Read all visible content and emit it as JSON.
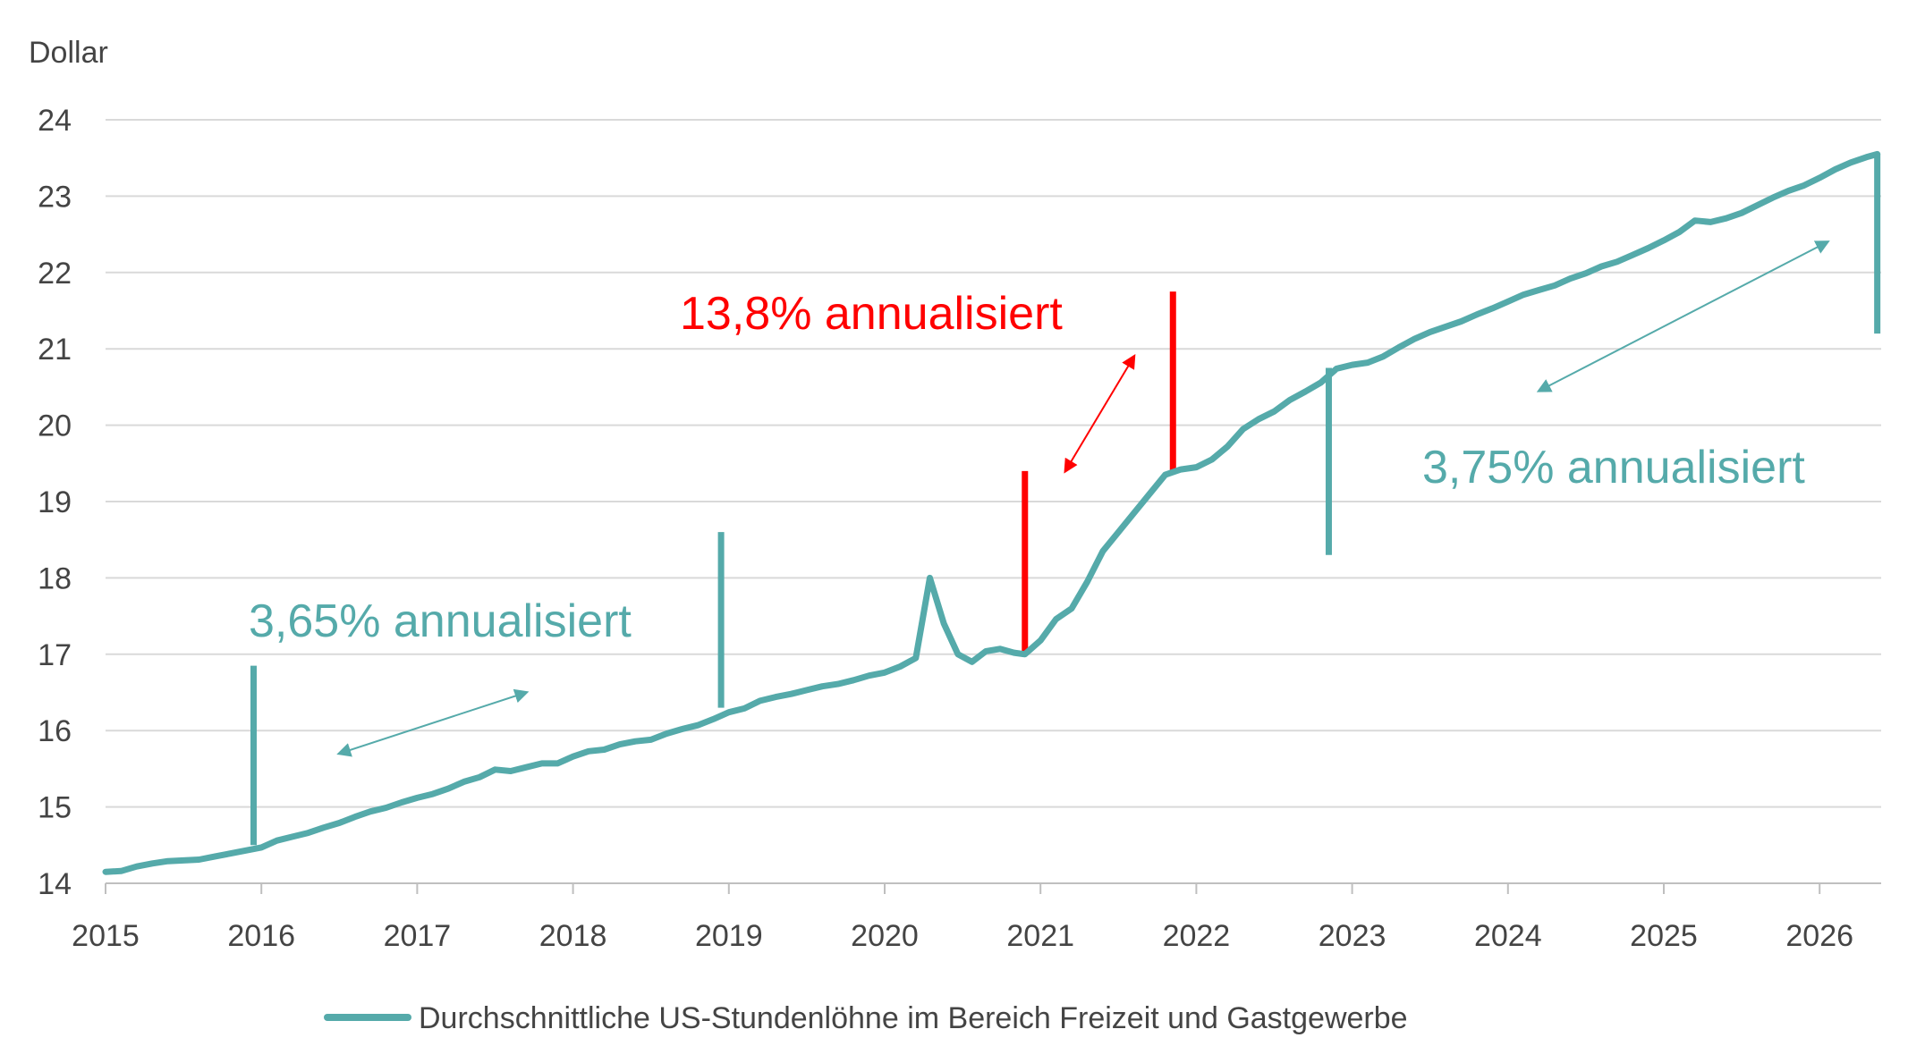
{
  "chart_data": {
    "type": "line",
    "ylabel": "Dollar",
    "ylim": [
      14,
      24
    ],
    "yticks": [
      14,
      15,
      16,
      17,
      18,
      19,
      20,
      21,
      22,
      23,
      24
    ],
    "xlim": [
      2015,
      2026.4
    ],
    "xticks": [
      "2015",
      "2016",
      "2017",
      "2018",
      "2019",
      "2020",
      "2021",
      "2022",
      "2023",
      "2024",
      "2025",
      "2026"
    ],
    "grid": true,
    "legend_position": "bottom",
    "colors": {
      "series": "#55aaaa",
      "highlight": "#ff0000",
      "grid": "#d9d9d9",
      "axis": "#bfbfbf",
      "text": "#444444"
    },
    "series": [
      {
        "name": "Durchschnittliche US-Stundenlöhne im Bereich Freizeit und Gastgewerbe",
        "x": [
          2015.0,
          2015.1,
          2015.2,
          2015.3,
          2015.4,
          2015.5,
          2015.6,
          2015.7,
          2015.8,
          2015.9,
          2016.0,
          2016.1,
          2016.2,
          2016.3,
          2016.4,
          2016.5,
          2016.6,
          2016.7,
          2016.8,
          2016.9,
          2017.0,
          2017.1,
          2017.2,
          2017.3,
          2017.4,
          2017.5,
          2017.6,
          2017.7,
          2017.8,
          2017.9,
          2018.0,
          2018.1,
          2018.2,
          2018.3,
          2018.4,
          2018.5,
          2018.6,
          2018.7,
          2018.8,
          2018.9,
          2019.0,
          2019.1,
          2019.2,
          2019.3,
          2019.4,
          2019.5,
          2019.6,
          2019.7,
          2019.8,
          2019.9,
          2020.0,
          2020.1,
          2020.2,
          2020.29,
          2020.38,
          2020.47,
          2020.56,
          2020.65,
          2020.74,
          2020.83,
          2020.9,
          2021.0,
          2021.1,
          2021.2,
          2021.3,
          2021.4,
          2021.5,
          2021.6,
          2021.7,
          2021.8,
          2021.9,
          2022.0,
          2022.1,
          2022.2,
          2022.3,
          2022.4,
          2022.5,
          2022.6,
          2022.7,
          2022.8,
          2022.9,
          2023.0,
          2023.1,
          2023.2,
          2023.3,
          2023.4,
          2023.5,
          2023.6,
          2023.7,
          2023.8,
          2023.9,
          2024.0,
          2024.1,
          2024.2,
          2024.3,
          2024.4,
          2024.5,
          2024.6,
          2024.7,
          2024.8,
          2024.9,
          2025.0,
          2025.1,
          2025.2,
          2025.3,
          2025.4,
          2025.5,
          2025.6,
          2025.7,
          2025.8,
          2025.9,
          2026.0,
          2026.1,
          2026.2,
          2026.3,
          2026.37
        ],
        "values": [
          14.15,
          14.16,
          14.22,
          14.26,
          14.29,
          14.3,
          14.31,
          14.35,
          14.39,
          14.43,
          14.47,
          14.56,
          14.61,
          14.66,
          14.73,
          14.79,
          14.87,
          14.94,
          14.99,
          15.06,
          15.12,
          15.17,
          15.24,
          15.33,
          15.39,
          15.49,
          15.47,
          15.52,
          15.57,
          15.57,
          15.66,
          15.73,
          15.75,
          15.82,
          15.86,
          15.88,
          15.96,
          16.02,
          16.07,
          16.15,
          16.24,
          16.29,
          16.39,
          16.44,
          16.48,
          16.53,
          16.58,
          16.61,
          16.66,
          16.72,
          16.76,
          16.84,
          16.95,
          18.0,
          17.4,
          17.0,
          16.9,
          17.04,
          17.07,
          17.02,
          17.0,
          17.18,
          17.46,
          17.6,
          17.95,
          18.35,
          18.6,
          18.85,
          19.1,
          19.35,
          19.42,
          19.45,
          19.55,
          19.72,
          19.95,
          20.08,
          20.18,
          20.33,
          20.44,
          20.56,
          20.74,
          20.79,
          20.82,
          20.9,
          21.02,
          21.13,
          21.22,
          21.29,
          21.36,
          21.45,
          21.53,
          21.62,
          21.71,
          21.77,
          21.83,
          21.92,
          21.99,
          22.08,
          22.14,
          22.23,
          22.32,
          22.42,
          22.53,
          22.68,
          22.66,
          22.71,
          22.78,
          22.88,
          22.98,
          23.07,
          23.14,
          23.24,
          23.35,
          23.44,
          23.51,
          23.55
        ]
      }
    ],
    "annotations": [
      {
        "text": "3,65% annualisiert",
        "color": "#55aaaa"
      },
      {
        "text": "13,8% annualisiert",
        "color": "#ff0000"
      },
      {
        "text": "3,75% annualisiert",
        "color": "#55aaaa"
      }
    ],
    "markers": [
      {
        "x": 2015.95,
        "y_from": 14.5,
        "y_to": 16.85,
        "color": "#55aaaa"
      },
      {
        "x": 2018.95,
        "y_from": 16.3,
        "y_to": 18.6,
        "color": "#55aaaa"
      },
      {
        "x": 2020.9,
        "y_from": 17.0,
        "y_to": 19.4,
        "color": "#ff0000"
      },
      {
        "x": 2021.85,
        "y_from": 19.4,
        "y_to": 21.75,
        "color": "#ff0000"
      },
      {
        "x": 2022.85,
        "y_from": 18.3,
        "y_to": 20.75,
        "color": "#55aaaa"
      },
      {
        "x": 2026.37,
        "y_from": 21.2,
        "y_to": 23.55,
        "color": "#55aaaa"
      }
    ],
    "arrows": [
      {
        "from": [
          2016.5,
          15.7
        ],
        "to": [
          2017.7,
          16.5
        ],
        "color": "#55aaaa"
      },
      {
        "from": [
          2021.16,
          19.4
        ],
        "to": [
          2021.6,
          20.9
        ],
        "color": "#ff0000"
      },
      {
        "from": [
          2024.2,
          20.45
        ],
        "to": [
          2026.05,
          22.4
        ],
        "color": "#55aaaa"
      }
    ]
  }
}
